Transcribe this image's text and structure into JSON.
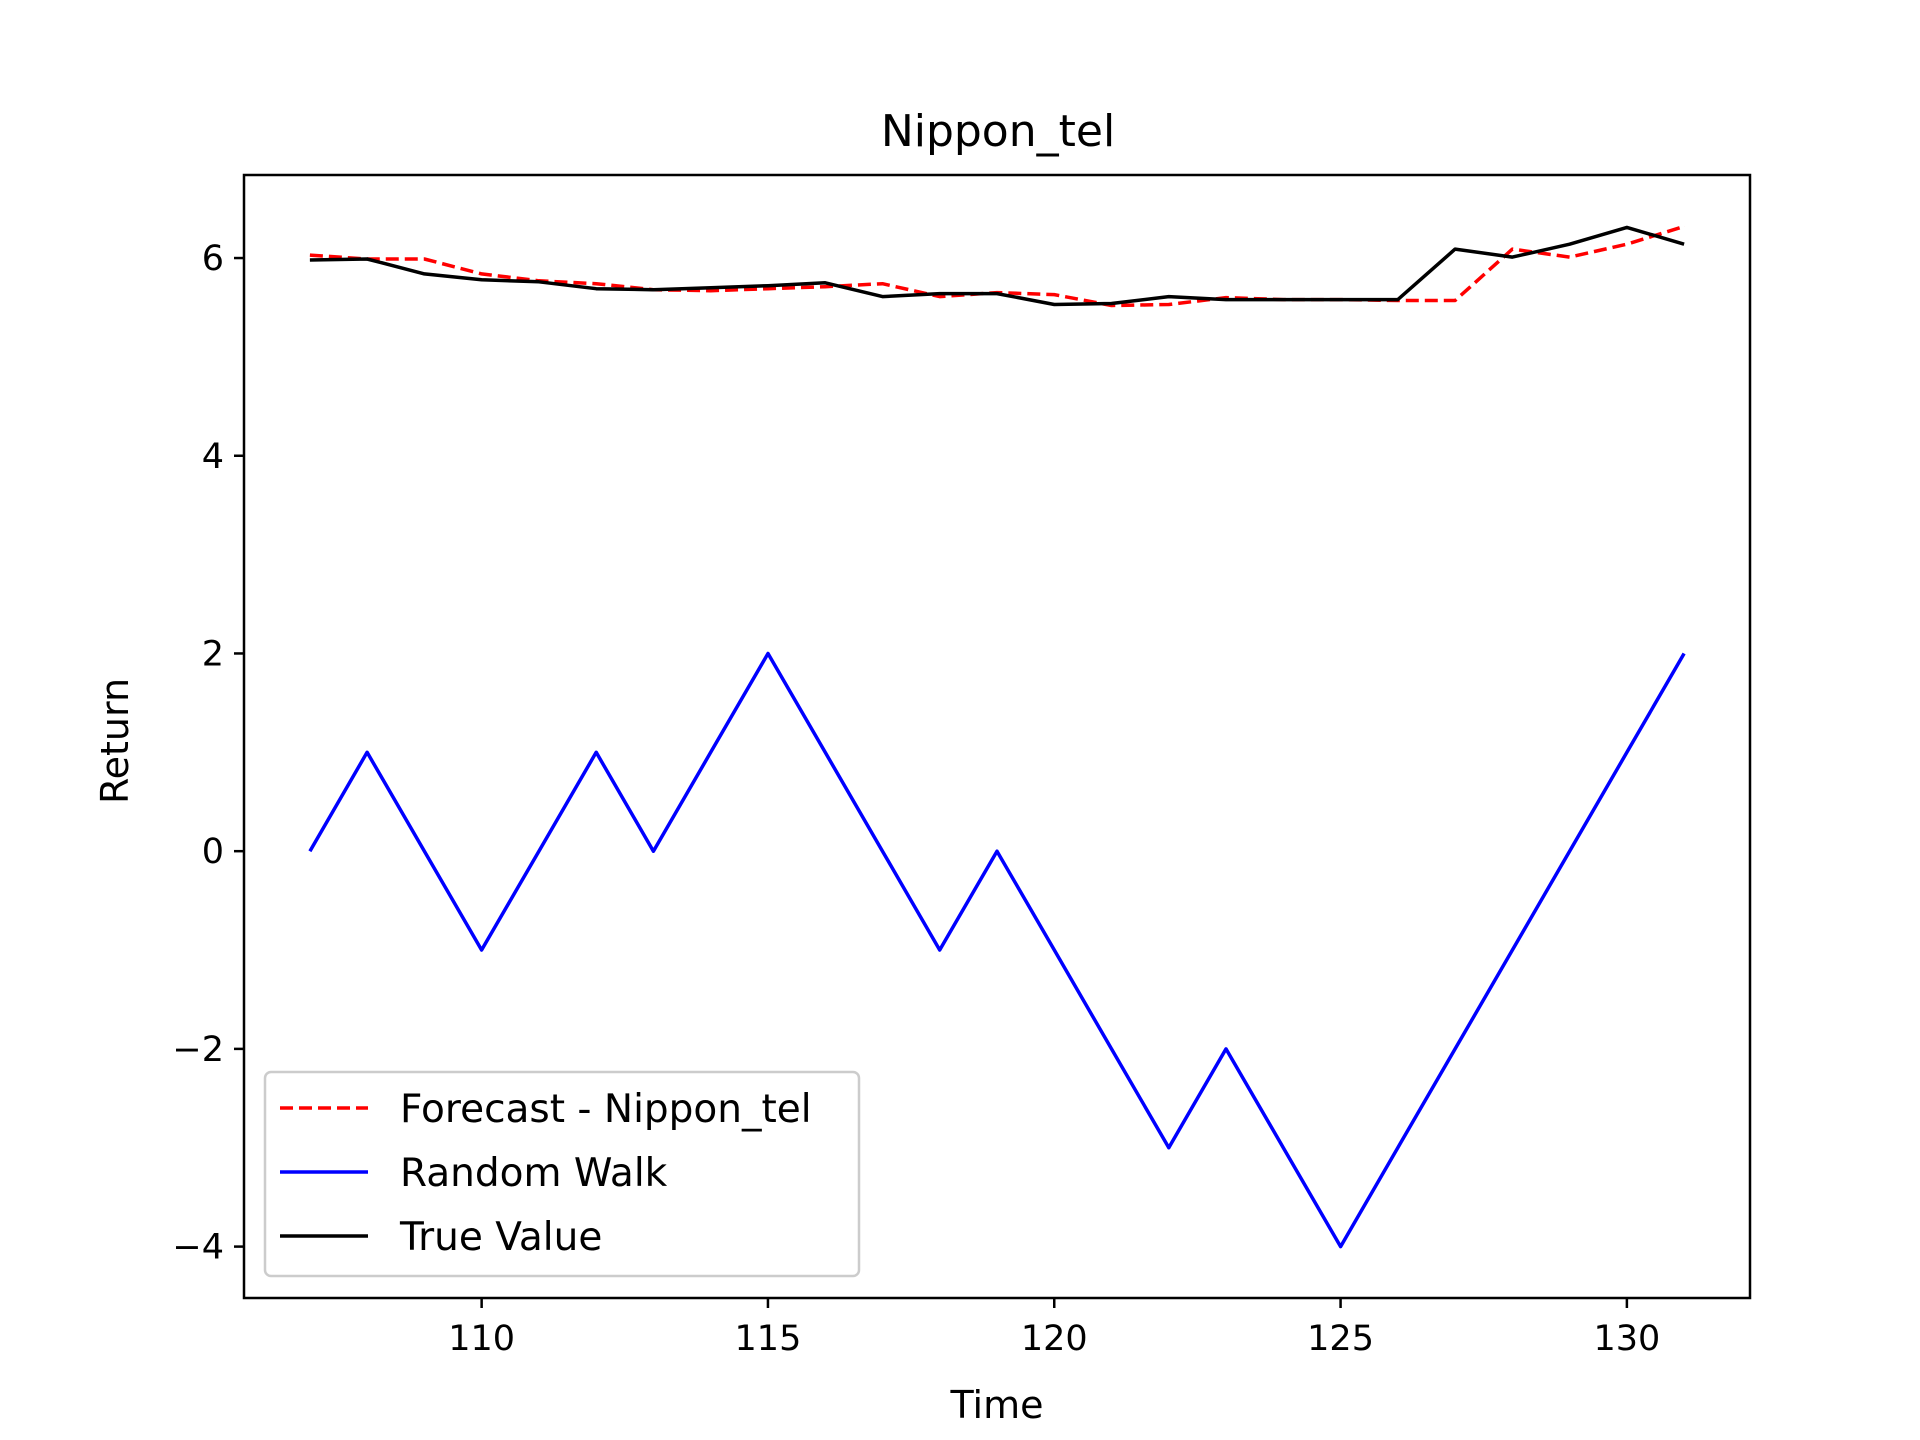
{
  "chart_data": {
    "type": "line",
    "title": "Nippon_tel",
    "xlabel": "Time",
    "ylabel": "Return",
    "xlim": [
      105.85,
      132.15
    ],
    "ylim": [
      -4.52,
      6.84
    ],
    "xticks": [
      110,
      115,
      120,
      125,
      130
    ],
    "yticks": [
      -4,
      -2,
      0,
      2,
      4,
      6
    ],
    "ytick_labels": [
      "−4",
      "−2",
      "0",
      "2",
      "4",
      "6"
    ],
    "grid": false,
    "legend_position": "lower-left",
    "x": [
      107,
      108,
      109,
      110,
      111,
      112,
      113,
      114,
      115,
      116,
      117,
      118,
      119,
      120,
      121,
      122,
      123,
      124,
      125,
      126,
      127,
      128,
      129,
      130,
      131
    ],
    "series": [
      {
        "name": "Forecast - Nippon_tel",
        "color": "#ff0000",
        "style": "dashed",
        "values": [
          6.03,
          5.99,
          5.99,
          5.84,
          5.77,
          5.74,
          5.68,
          5.67,
          5.69,
          5.71,
          5.74,
          5.61,
          5.65,
          5.63,
          5.52,
          5.53,
          5.6,
          5.58,
          5.58,
          5.57,
          5.57,
          6.09,
          6.01,
          6.14,
          6.32
        ]
      },
      {
        "name": "Random Walk",
        "color": "#0000ff",
        "style": "solid",
        "values": [
          0,
          1,
          0,
          -1,
          0,
          1,
          0,
          1,
          2,
          1,
          0,
          -1,
          0,
          -1,
          -2,
          -3,
          -2,
          -3,
          -4,
          -3,
          -2,
          -1,
          0,
          1,
          2
        ]
      },
      {
        "name": "True Value",
        "color": "#000000",
        "style": "solid",
        "values": [
          5.98,
          5.99,
          5.84,
          5.78,
          5.76,
          5.69,
          5.68,
          5.7,
          5.72,
          5.75,
          5.61,
          5.64,
          5.64,
          5.53,
          5.54,
          5.61,
          5.58,
          5.58,
          5.58,
          5.58,
          6.09,
          6.01,
          6.14,
          6.31,
          6.14
        ]
      }
    ]
  }
}
